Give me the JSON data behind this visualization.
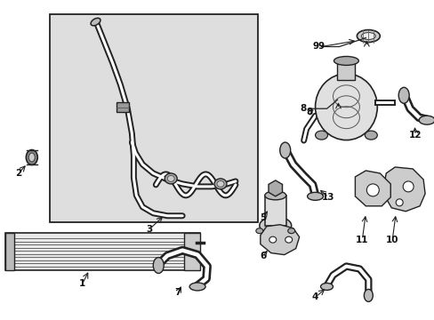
{
  "bg_color": "#ffffff",
  "box_bg": "#e0e0e0",
  "line_color": "#1a1a1a",
  "figsize": [
    4.89,
    3.6
  ],
  "dpi": 100
}
